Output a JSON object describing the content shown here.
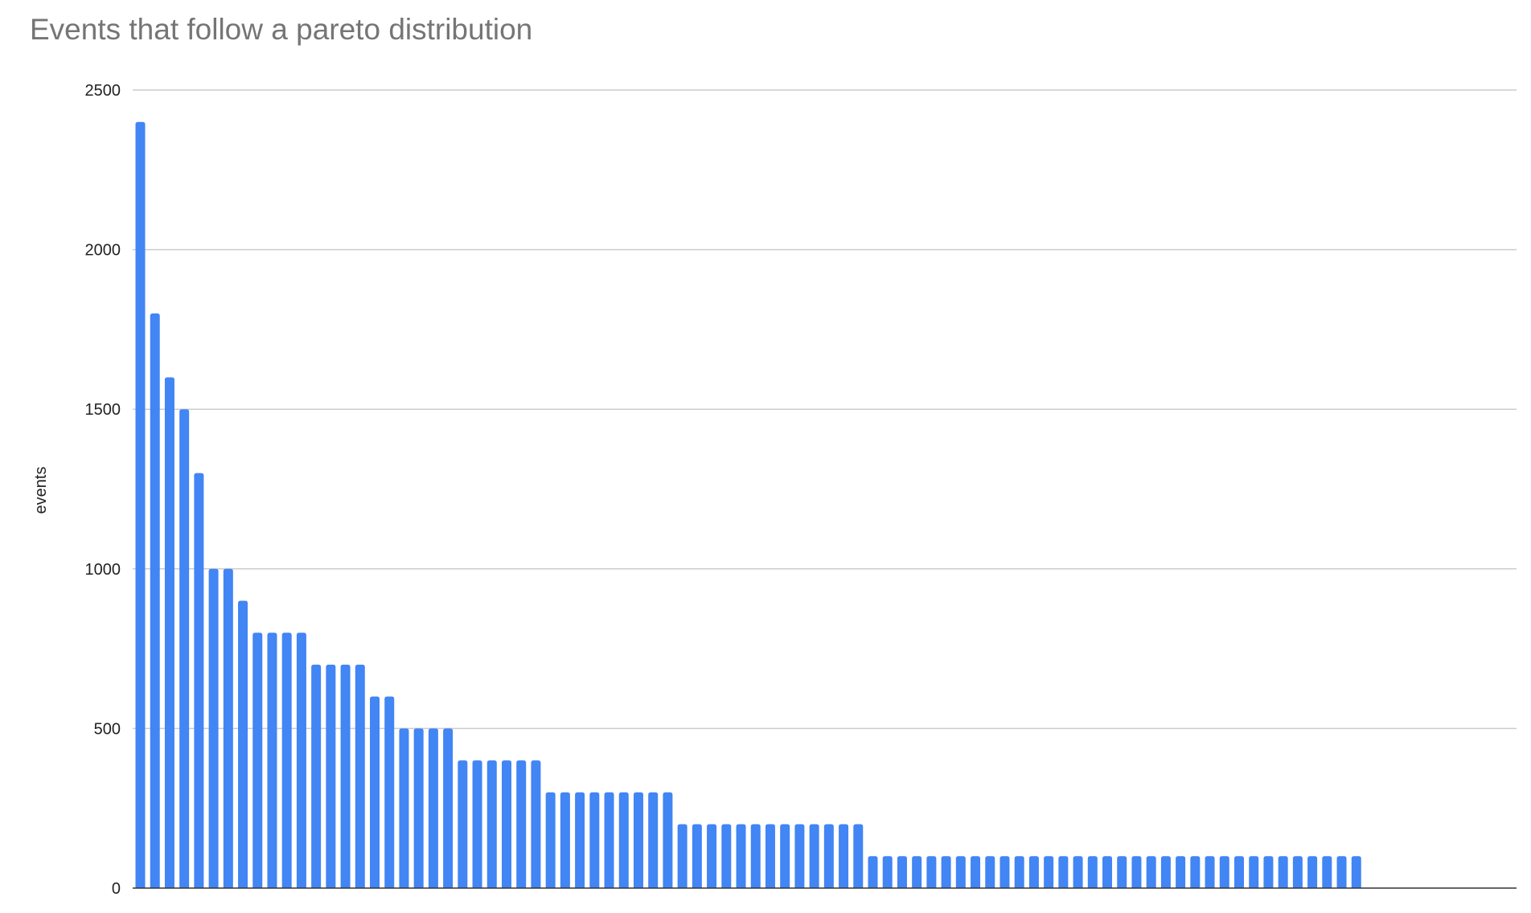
{
  "chart_data": {
    "type": "bar",
    "title": "Events that follow a pareto distribution",
    "xlabel": "",
    "ylabel": "events",
    "ylim": [
      0,
      2500
    ],
    "yticks": [
      0,
      500,
      1000,
      1500,
      2000,
      2500
    ],
    "grid": true,
    "legend": "none",
    "bar_color": "#4285f4",
    "values": [
      2400,
      1800,
      1600,
      1500,
      1300,
      1000,
      1000,
      900,
      800,
      800,
      800,
      800,
      700,
      700,
      700,
      700,
      600,
      600,
      500,
      500,
      500,
      500,
      400,
      400,
      400,
      400,
      400,
      400,
      300,
      300,
      300,
      300,
      300,
      300,
      300,
      300,
      300,
      200,
      200,
      200,
      200,
      200,
      200,
      200,
      200,
      200,
      200,
      200,
      200,
      200,
      100,
      100,
      100,
      100,
      100,
      100,
      100,
      100,
      100,
      100,
      100,
      100,
      100,
      100,
      100,
      100,
      100,
      100,
      100,
      100,
      100,
      100,
      100,
      100,
      100,
      100,
      100,
      100,
      100,
      100,
      100,
      100,
      100,
      100
    ]
  }
}
